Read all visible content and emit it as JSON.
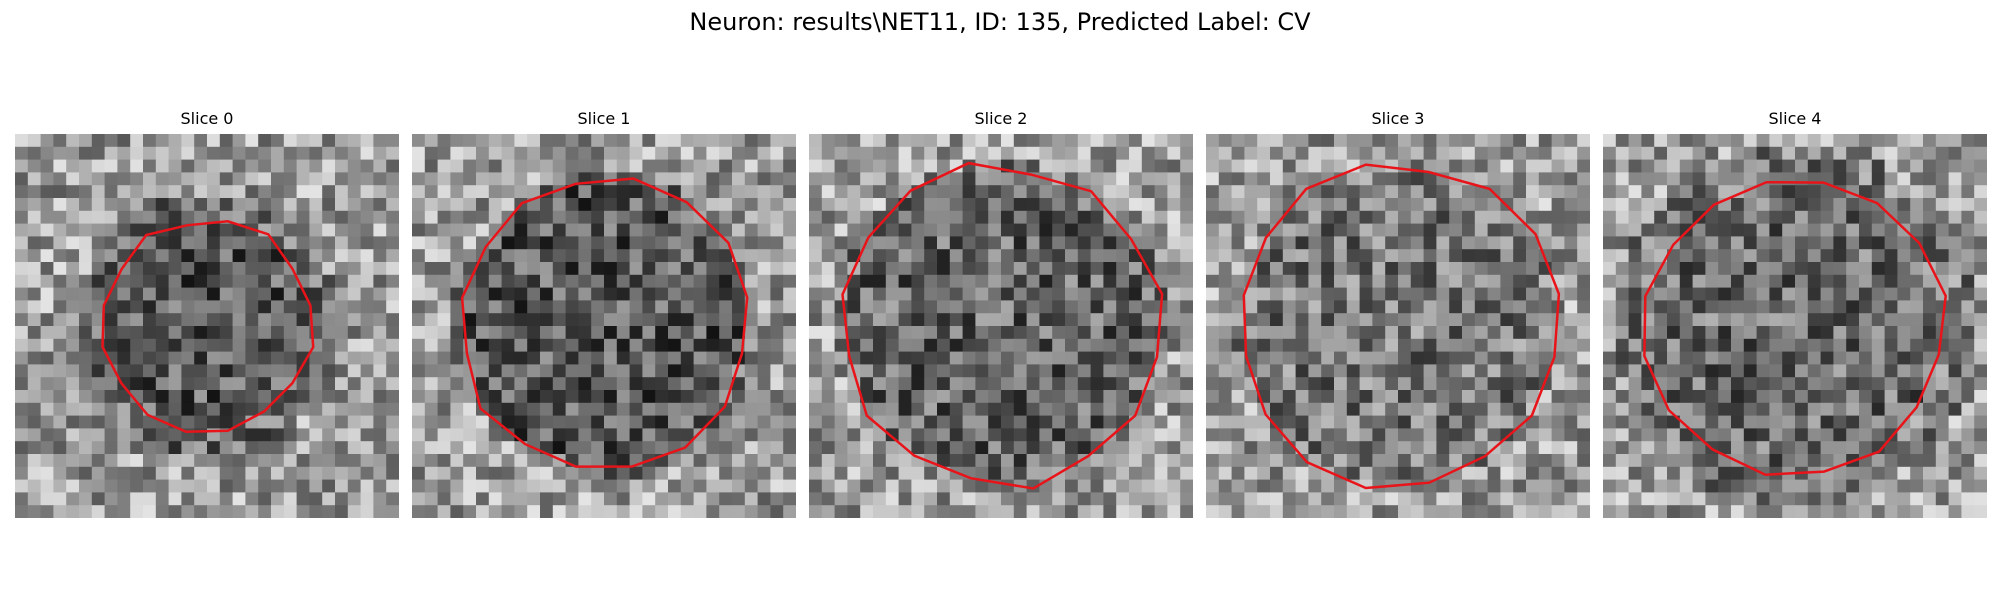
{
  "figure": {
    "title": "Neuron: results\\NET11, ID: 135, Predicted Label: CV"
  },
  "panels": [
    {
      "title": "Slice 0",
      "seed": 11,
      "darkness": 0.55,
      "radius": 0.26,
      "ring": 0.08
    },
    {
      "title": "Slice 1",
      "seed": 23,
      "darkness": 0.55,
      "radius": 0.36,
      "ring": 0.04
    },
    {
      "title": "Slice 2",
      "seed": 37,
      "darkness": 0.45,
      "radius": 0.4,
      "ring": 0.03
    },
    {
      "title": "Slice 3",
      "seed": 41,
      "darkness": 0.3,
      "radius": 0.4,
      "ring": 0.02
    },
    {
      "title": "Slice 4",
      "seed": 53,
      "darkness": 0.4,
      "radius": 0.37,
      "ring": 0.1
    }
  ],
  "colors": {
    "contour": "#e8141a",
    "background": "#ffffff"
  }
}
